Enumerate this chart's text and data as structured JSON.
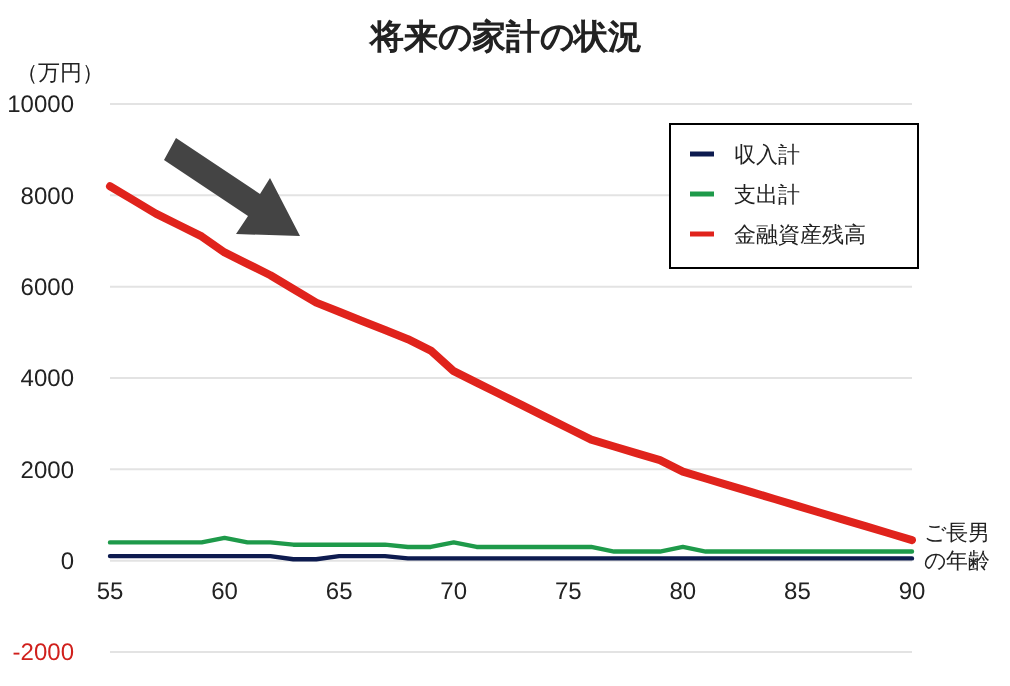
{
  "chart_data": {
    "type": "line",
    "title": "将来の家計の状況",
    "ylabel": "（万円）",
    "xlabel": "ご長男の年齢",
    "x": [
      55,
      56,
      57,
      58,
      59,
      60,
      61,
      62,
      63,
      64,
      65,
      66,
      67,
      68,
      69,
      70,
      71,
      72,
      73,
      74,
      75,
      76,
      77,
      78,
      79,
      80,
      81,
      82,
      83,
      84,
      85,
      86,
      87,
      88,
      89,
      90
    ],
    "series": [
      {
        "name": "収入計",
        "color": "#0d1b4f",
        "values": [
          100,
          100,
          100,
          100,
          100,
          100,
          100,
          100,
          30,
          30,
          100,
          100,
          100,
          50,
          50,
          50,
          50,
          50,
          50,
          50,
          50,
          50,
          50,
          50,
          50,
          50,
          50,
          50,
          50,
          50,
          50,
          50,
          50,
          50,
          50,
          50
        ]
      },
      {
        "name": "支出計",
        "color": "#1e9a4a",
        "values": [
          400,
          400,
          400,
          400,
          400,
          500,
          400,
          400,
          350,
          350,
          350,
          350,
          350,
          300,
          300,
          400,
          300,
          300,
          300,
          300,
          300,
          300,
          200,
          200,
          200,
          300,
          200,
          200,
          200,
          200,
          200,
          200,
          200,
          200,
          200,
          200
        ]
      },
      {
        "name": "金融資産残高",
        "color": "#e0231c",
        "values": [
          8200,
          7900,
          7600,
          7350,
          7100,
          6750,
          6500,
          6250,
          5950,
          5650,
          5450,
          5250,
          5050,
          4850,
          4600,
          4150,
          3900,
          3650,
          3400,
          3150,
          2900,
          2650,
          2500,
          2350,
          2200,
          1950,
          1800,
          1650,
          1500,
          1350,
          1200,
          1050,
          900,
          750,
          600,
          450
        ]
      }
    ],
    "xlim": [
      55,
      90
    ],
    "xticks": [
      55,
      60,
      65,
      70,
      75,
      80,
      85,
      90
    ],
    "ylim": [
      -2000,
      10000
    ],
    "yticks": [
      -2000,
      0,
      2000,
      4000,
      6000,
      8000,
      10000
    ],
    "grid": "y",
    "legend": "top right",
    "marker": "none",
    "line_style": "solid"
  }
}
